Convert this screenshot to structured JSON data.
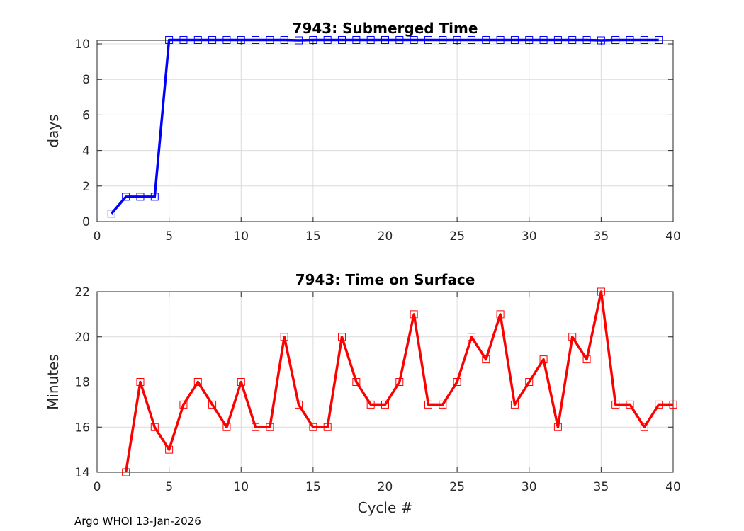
{
  "footer": "Argo WHOI 13-Jan-2026",
  "chart_data": [
    {
      "type": "line",
      "title": "7943: Submerged Time",
      "xlabel": "",
      "ylabel": "days",
      "xlim": [
        0,
        40
      ],
      "ylim": [
        0,
        10.2
      ],
      "xticks": [
        0,
        5,
        10,
        15,
        20,
        25,
        30,
        35,
        40
      ],
      "yticks": [
        0,
        2,
        4,
        6,
        8,
        10
      ],
      "grid": true,
      "color": "#0000ff",
      "marker": "square",
      "series": [
        {
          "name": "Submerged Time",
          "x": [
            1,
            2,
            3,
            4,
            5,
            6,
            7,
            8,
            9,
            10,
            11,
            12,
            13,
            14,
            15,
            16,
            17,
            18,
            19,
            20,
            21,
            22,
            23,
            24,
            25,
            26,
            27,
            28,
            29,
            30,
            31,
            32,
            33,
            34,
            35,
            36,
            37,
            38,
            39
          ],
          "values": [
            0.45,
            1.4,
            1.4,
            1.4,
            10.22,
            10.22,
            10.22,
            10.22,
            10.22,
            10.22,
            10.22,
            10.22,
            10.22,
            10.2,
            10.22,
            10.22,
            10.22,
            10.22,
            10.22,
            10.22,
            10.22,
            10.22,
            10.22,
            10.22,
            10.22,
            10.22,
            10.22,
            10.22,
            10.22,
            10.22,
            10.22,
            10.22,
            10.22,
            10.22,
            10.2,
            10.22,
            10.22,
            10.22,
            10.22
          ]
        }
      ]
    },
    {
      "type": "line",
      "title": "7943: Time on Surface",
      "xlabel": "Cycle #",
      "ylabel": "Minutes",
      "xlim": [
        0,
        40
      ],
      "ylim": [
        14,
        22
      ],
      "xticks": [
        0,
        5,
        10,
        15,
        20,
        25,
        30,
        35,
        40
      ],
      "yticks": [
        14,
        16,
        18,
        20,
        22
      ],
      "grid": true,
      "color": "#ff0000",
      "marker": "square",
      "series": [
        {
          "name": "Time on Surface",
          "x": [
            2,
            3,
            4,
            5,
            6,
            7,
            8,
            9,
            10,
            11,
            12,
            13,
            14,
            15,
            16,
            17,
            18,
            19,
            20,
            21,
            22,
            23,
            24,
            25,
            26,
            27,
            28,
            29,
            30,
            31,
            32,
            33,
            34,
            35,
            36,
            37,
            38,
            39,
            40
          ],
          "values": [
            14,
            18,
            16,
            15,
            17,
            18,
            17,
            16,
            18,
            16,
            16,
            20,
            17,
            16,
            16,
            20,
            18,
            17,
            17,
            18,
            21,
            17,
            17,
            18,
            20,
            19,
            21,
            17,
            18,
            19,
            16,
            20,
            19,
            22,
            17,
            17,
            16,
            17,
            17
          ]
        }
      ]
    }
  ]
}
